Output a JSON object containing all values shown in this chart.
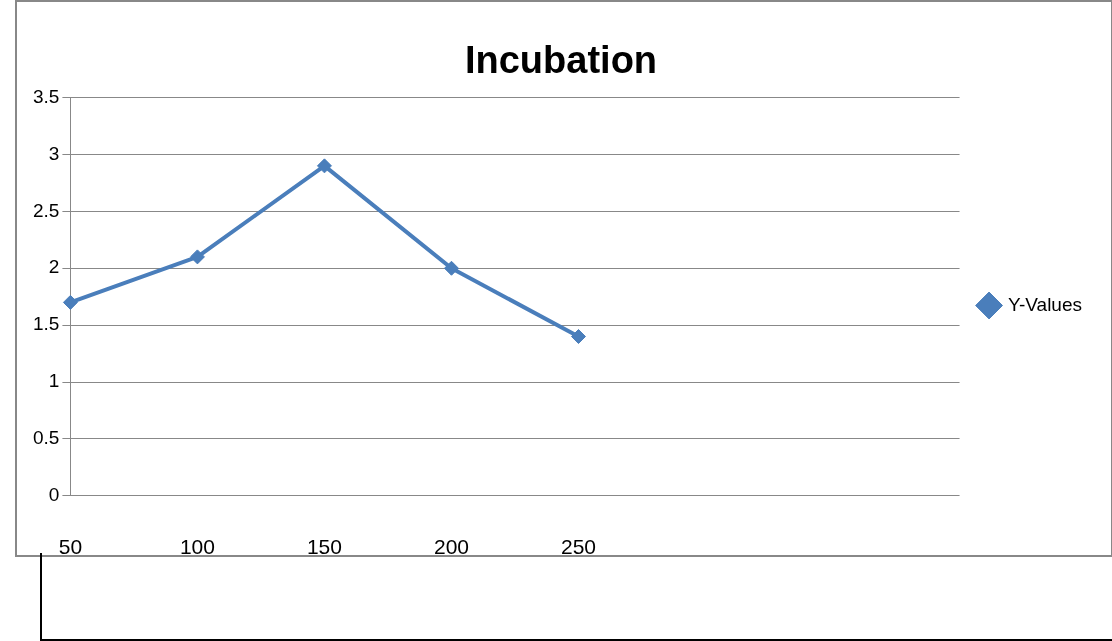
{
  "chart_data": {
    "type": "line",
    "title": "Incubation",
    "categories": [
      "50",
      "100",
      "150",
      "200",
      "250",
      null,
      null,
      null
    ],
    "series": [
      {
        "name": "Y-Values",
        "color": "#4a7ebb",
        "values": [
          1.7,
          2.1,
          2.9,
          2.0,
          1.4,
          null,
          null,
          null
        ]
      }
    ],
    "ylim": [
      0,
      3.5
    ],
    "yticks": [
      0,
      0.5,
      1,
      1.5,
      2,
      2.5,
      3,
      3.5
    ],
    "grid": "y",
    "legend": "right",
    "marker": "diamond",
    "line_style": "solid"
  }
}
